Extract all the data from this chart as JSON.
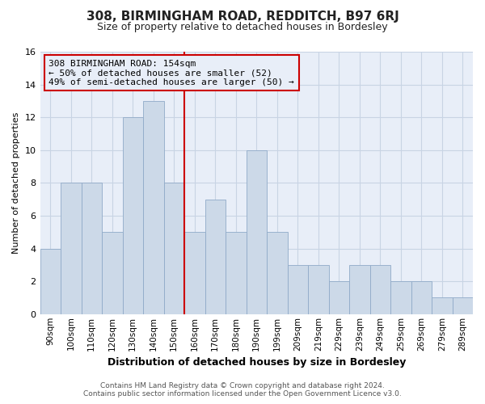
{
  "title": "308, BIRMINGHAM ROAD, REDDITCH, B97 6RJ",
  "subtitle": "Size of property relative to detached houses in Bordesley",
  "xlabel": "Distribution of detached houses by size in Bordesley",
  "ylabel": "Number of detached properties",
  "footer_lines": [
    "Contains HM Land Registry data © Crown copyright and database right 2024.",
    "Contains public sector information licensed under the Open Government Licence v3.0."
  ],
  "bin_labels": [
    "90sqm",
    "100sqm",
    "110sqm",
    "120sqm",
    "130sqm",
    "140sqm",
    "150sqm",
    "160sqm",
    "170sqm",
    "180sqm",
    "190sqm",
    "199sqm",
    "209sqm",
    "219sqm",
    "229sqm",
    "239sqm",
    "249sqm",
    "259sqm",
    "269sqm",
    "279sqm",
    "289sqm"
  ],
  "bar_values": [
    4,
    8,
    8,
    5,
    12,
    13,
    8,
    5,
    7,
    5,
    10,
    5,
    3,
    3,
    2,
    3,
    3,
    2,
    2,
    1,
    1
  ],
  "bar_color": "#ccd9e8",
  "bar_edge_color": "#90aac8",
  "marker_label": "308 BIRMINGHAM ROAD: 154sqm",
  "marker_line_color": "#cc0000",
  "annotation_line1": "← 50% of detached houses are smaller (52)",
  "annotation_line2": "49% of semi-detached houses are larger (50) →",
  "annotation_box_edge": "#cc0000",
  "ylim": [
    0,
    16
  ],
  "yticks": [
    0,
    2,
    4,
    6,
    8,
    10,
    12,
    14,
    16
  ],
  "grid_color": "#c8d4e4",
  "background_color": "#ffffff",
  "plot_bg_color": "#e8eef8"
}
